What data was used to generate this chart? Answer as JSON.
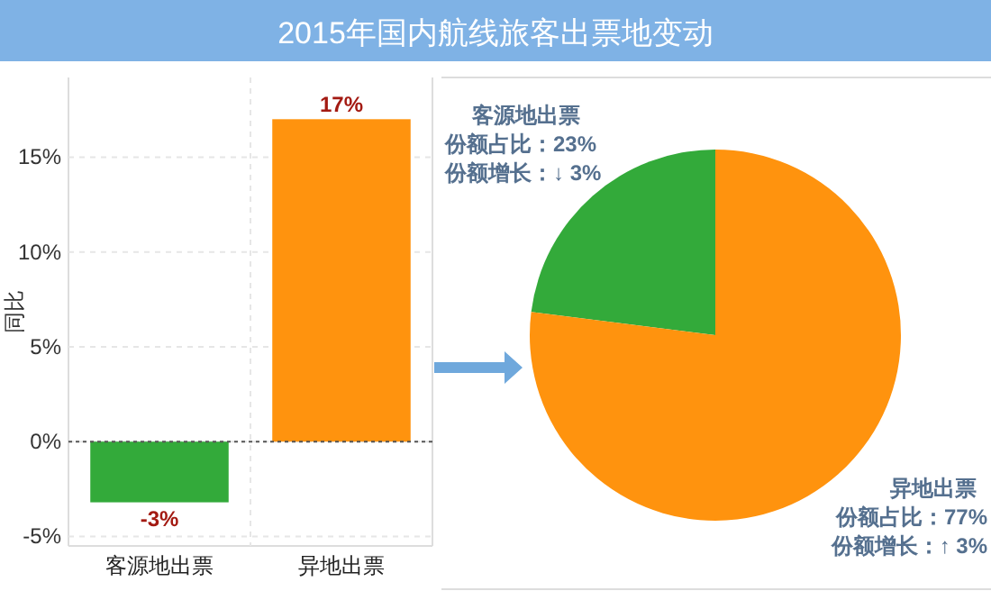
{
  "chart_data": [
    {
      "type": "bar",
      "title": "2015年国内航线旅客出票地变动",
      "ylabel": "同比",
      "categories": [
        "客源地出票",
        "异地出票"
      ],
      "values": [
        -3.2,
        17
      ],
      "colors": [
        "#33aa3a",
        "#ff930e"
      ],
      "value_labels": [
        "-3%",
        "17%"
      ],
      "ylim": [
        -5.5,
        19.2
      ],
      "yticks": [
        {
          "value": -5,
          "label": "-5%"
        },
        {
          "value": 0,
          "label": "0%"
        },
        {
          "value": 5,
          "label": "5%"
        },
        {
          "value": 10,
          "label": "10%"
        },
        {
          "value": 15,
          "label": "15%"
        }
      ],
      "grid": true,
      "ref_lines": [
        {
          "axis": "y",
          "value": 0,
          "line_style": "dotted",
          "color": "#555555"
        }
      ]
    },
    {
      "type": "pie",
      "categories": [
        "客源地出票",
        "异地出票"
      ],
      "values": [
        23,
        77
      ],
      "colors": [
        "#33aa3a",
        "#ff930e"
      ],
      "value_labels": [
        "份额占比：23%",
        "份额占比：77%"
      ],
      "annotations": [
        "份额增长：↓ 3%",
        "份额增长：↑ 3%"
      ]
    }
  ]
}
